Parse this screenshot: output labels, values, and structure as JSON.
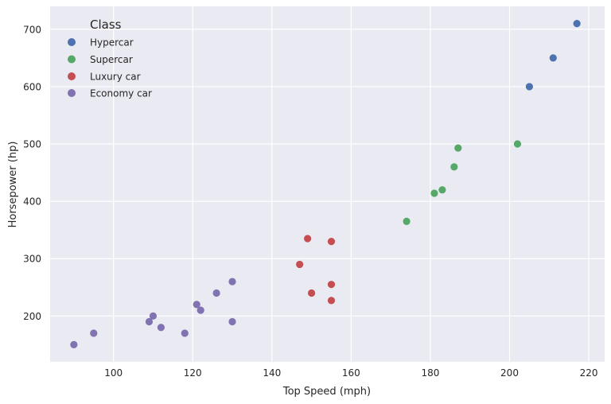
{
  "chart_data": {
    "type": "scatter",
    "title": "",
    "xlabel": "Top Speed (mph)",
    "ylabel": "Horsepower (hp)",
    "xlim": [
      84,
      224
    ],
    "ylim": [
      120,
      740
    ],
    "xticks": [
      100,
      120,
      140,
      160,
      180,
      200,
      220
    ],
    "yticks": [
      200,
      300,
      400,
      500,
      600,
      700
    ],
    "grid": true,
    "legend": {
      "title": "Class",
      "placement": "top-left"
    },
    "series": [
      {
        "name": "Hypercar",
        "color": "#4c72b0",
        "points": [
          [
            205,
            600
          ],
          [
            211,
            650
          ],
          [
            217,
            710
          ]
        ]
      },
      {
        "name": "Supercar",
        "color": "#55a868",
        "points": [
          [
            174,
            365
          ],
          [
            181,
            414
          ],
          [
            183,
            420
          ],
          [
            186,
            460
          ],
          [
            187,
            493
          ],
          [
            202,
            500
          ]
        ]
      },
      {
        "name": "Luxury car",
        "color": "#c44e52",
        "points": [
          [
            147,
            290
          ],
          [
            149,
            335
          ],
          [
            150,
            240
          ],
          [
            155,
            330
          ],
          [
            155,
            255
          ],
          [
            155,
            227
          ]
        ]
      },
      {
        "name": "Economy car",
        "color": "#8172b2",
        "points": [
          [
            90,
            150
          ],
          [
            95,
            170
          ],
          [
            109,
            190
          ],
          [
            110,
            200
          ],
          [
            112,
            180
          ],
          [
            118,
            170
          ],
          [
            121,
            220
          ],
          [
            122,
            210
          ],
          [
            126,
            240
          ],
          [
            130,
            260
          ],
          [
            130,
            190
          ]
        ]
      }
    ]
  }
}
